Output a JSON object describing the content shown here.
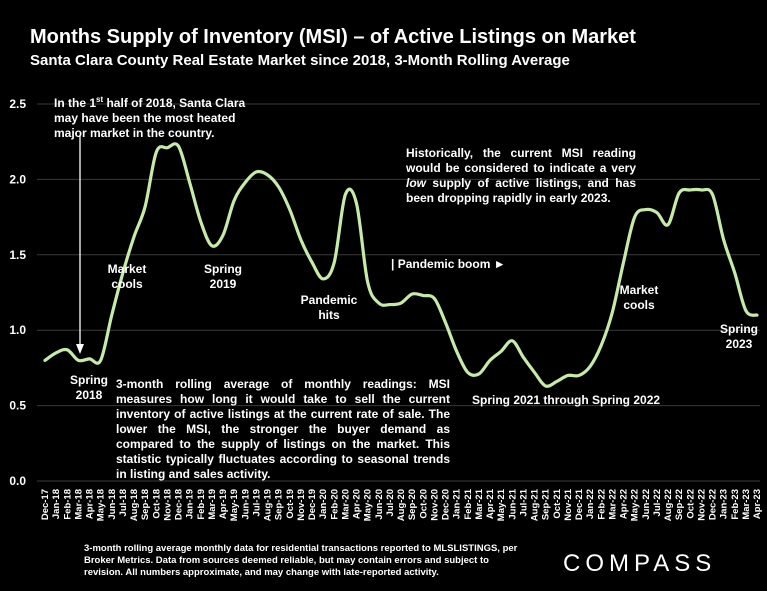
{
  "header": {
    "title": "Months Supply of Inventory (MSI) – of Active Listings on Market",
    "subtitle": "Santa Clara County Real Estate Market since 2018, 3-Month Rolling Average"
  },
  "annotations": {
    "heated_prefix": "In the 1",
    "heated_sup": "st",
    "heated_rest": " half of 2018, Santa Clara may have been the most heated major market in the country.",
    "historically_1": "Historically, the current MSI reading would be considered to indicate a very ",
    "historically_em": "low",
    "historically_2": " supply of active listings, and has been dropping rapidly in early 2023.",
    "market_cools_1": "Market cools",
    "spring_2019": "Spring 2019",
    "pandemic_hits": "Pandemic hits",
    "pandemic_boom": "| Pandemic boom ►",
    "spring_2018": "Spring 2018",
    "spring_2021_2022": "Spring 2021 through Spring 2022",
    "market_cools_2": "Market cools",
    "spring_2023": "Spring 2023",
    "explanation": "3-month rolling average of monthly readings: MSI measures how long it would take to sell the current inventory of active listings at the current rate of sale. The lower the MSI, the stronger the buyer demand as compared to the supply of listings on the market. This statistic typically fluctuates according to seasonal trends in listing and sales activity."
  },
  "footer": {
    "note": "3-month rolling average monthly data for residential transactions reported to MLSLISTINGS, per Broker Metrics. Data from sources deemed reliable, but may contain errors and subject to revision. All numbers approximate, and may change with late-reported activity.",
    "brand": "COMPASS"
  },
  "colors": {
    "line": "#c7e9ad",
    "grid": "#3a3a3a",
    "background": "#000000"
  },
  "chart_data": {
    "type": "line",
    "title": "Months Supply of Inventory (MSI) – of Active Listings on Market",
    "subtitle": "Santa Clara County Real Estate Market since 2018, 3-Month Rolling Average",
    "xlabel": "",
    "ylabel": "",
    "ylim": [
      0,
      2.5
    ],
    "yticks": [
      "0.0",
      "0.5",
      "1.0",
      "1.5",
      "2.0",
      "2.5"
    ],
    "grid": true,
    "categories": [
      "Dec-17",
      "Jan-18",
      "Feb-18",
      "Mar-18",
      "Apr-18",
      "May-18",
      "Jun-18",
      "Jul-18",
      "Aug-18",
      "Sep-18",
      "Oct-18",
      "Nov-18",
      "Dec-18",
      "Jan-19",
      "Feb-19",
      "Mar-19",
      "Apr-19",
      "May-19",
      "Jun-19",
      "Jul-19",
      "Aug-19",
      "Sep-19",
      "Oct-19",
      "Nov-19",
      "Dec-19",
      "Jan-20",
      "Feb-20",
      "Mar-20",
      "Apr-20",
      "May-20",
      "Jun-20",
      "Jul-20",
      "Aug-20",
      "Sep-20",
      "Oct-20",
      "Nov-20",
      "Dec-20",
      "Jan-21",
      "Feb-21",
      "Mar-21",
      "Apr-21",
      "May-21",
      "Jun-21",
      "Jul-21",
      "Aug-21",
      "Sep-21",
      "Oct-21",
      "Nov-21",
      "Dec-21",
      "Jan-22",
      "Feb-22",
      "Mar-22",
      "Apr-22",
      "May-22",
      "Jun-22",
      "Jul-22",
      "Aug-22",
      "Sep-22",
      "Oct-22",
      "Nov-22",
      "Dec-22",
      "Jan-23",
      "Feb-23",
      "Mar-23",
      "Apr-23"
    ],
    "series": [
      {
        "name": "",
        "values": [
          0.8,
          0.85,
          0.87,
          0.8,
          0.81,
          0.8,
          1.1,
          1.38,
          1.62,
          1.82,
          2.18,
          2.21,
          2.22,
          1.98,
          1.72,
          1.56,
          1.63,
          1.86,
          1.98,
          2.05,
          2.03,
          1.95,
          1.8,
          1.6,
          1.45,
          1.34,
          1.45,
          1.9,
          1.84,
          1.32,
          1.18,
          1.17,
          1.18,
          1.24,
          1.23,
          1.21,
          1.05,
          0.86,
          0.72,
          0.71,
          0.8,
          0.86,
          0.93,
          0.82,
          0.72,
          0.63,
          0.66,
          0.7,
          0.7,
          0.76,
          0.9,
          1.12,
          1.45,
          1.75,
          1.8,
          1.78,
          1.7,
          1.91,
          1.93,
          1.93,
          1.9,
          1.6,
          1.38,
          1.13,
          1.1
        ]
      }
    ]
  }
}
